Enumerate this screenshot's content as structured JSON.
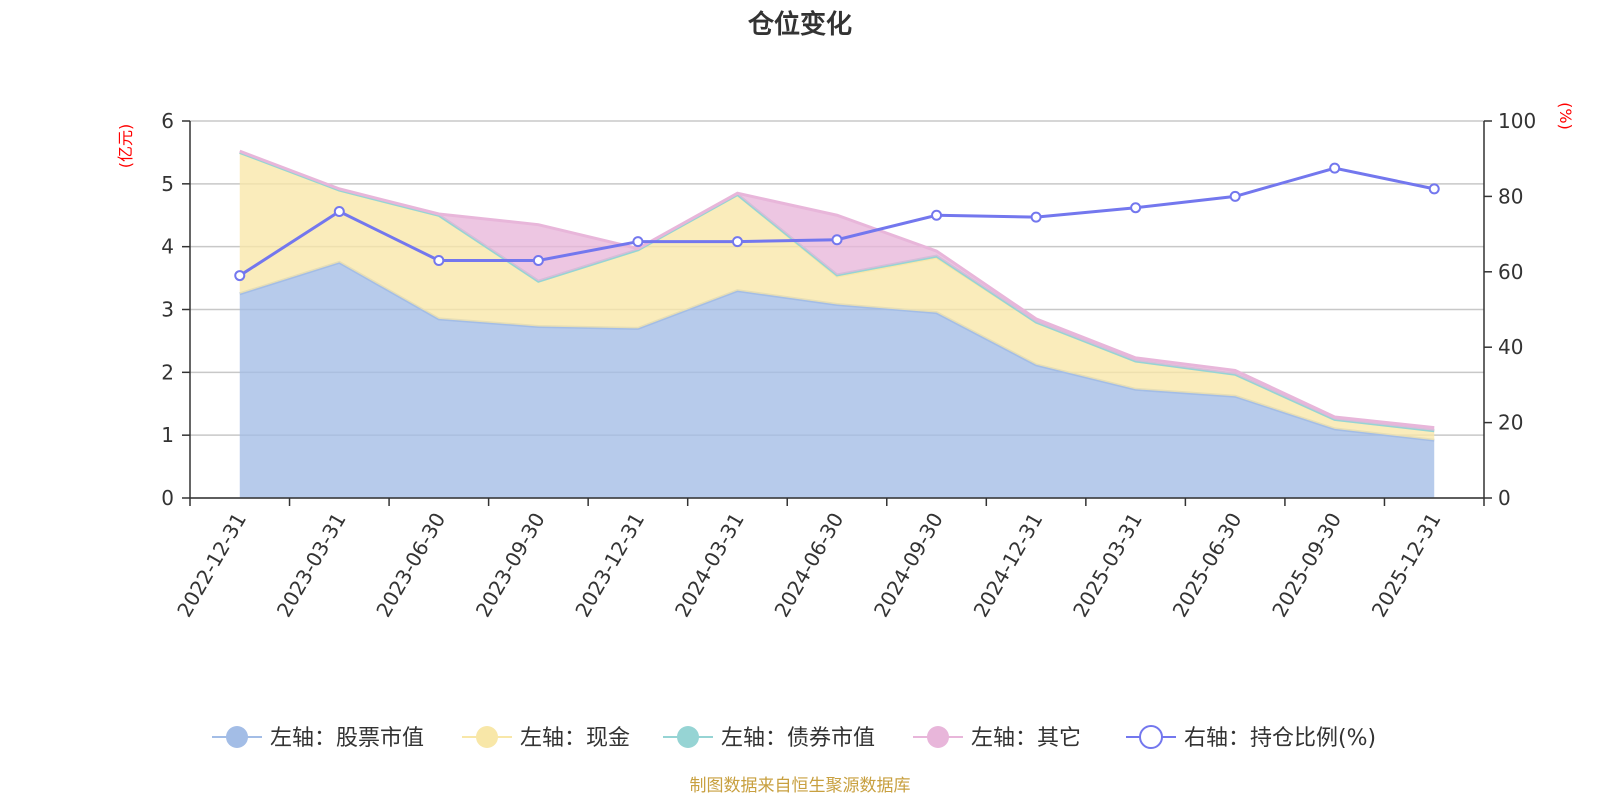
{
  "chart_data": {
    "type": "area",
    "title": "仓位变化",
    "categories": [
      "2022-12-31",
      "2023-03-31",
      "2023-06-30",
      "2023-09-30",
      "2023-12-31",
      "2024-03-31",
      "2024-06-30",
      "2024-09-30",
      "2024-12-31",
      "2025-03-31",
      "2025-06-30",
      "2025-09-30",
      "2025-12-31"
    ],
    "y_left": {
      "label": "(亿元)",
      "min": 0,
      "max": 6,
      "ticks": [
        "0",
        "1",
        "2",
        "3",
        "4",
        "5",
        "6"
      ]
    },
    "y_right": {
      "label": "(%)",
      "min": 0,
      "max": 100,
      "ticks": [
        "0",
        "20",
        "40",
        "60",
        "80",
        "100"
      ]
    },
    "series": [
      {
        "name": "左轴：股票市值",
        "axis": "left",
        "stacked": true,
        "color": "#a3bde6",
        "values": [
          3.25,
          3.75,
          2.85,
          2.73,
          2.7,
          3.3,
          3.08,
          2.95,
          2.12,
          1.73,
          1.62,
          1.1,
          0.92
        ]
      },
      {
        "name": "左轴：现金",
        "axis": "left",
        "stacked": true,
        "color": "#f8e7a8",
        "values": [
          2.25,
          1.15,
          1.65,
          0.72,
          1.25,
          1.53,
          0.45,
          0.88,
          0.68,
          0.45,
          0.35,
          0.15,
          0.15
        ]
      },
      {
        "name": "左轴：债券市值",
        "axis": "left",
        "stacked": true,
        "color": "#96d4d4",
        "values": [
          0,
          0,
          0,
          0,
          0,
          0,
          0.02,
          0.02,
          0,
          0,
          0,
          0,
          0
        ]
      },
      {
        "name": "左轴：其它",
        "axis": "left",
        "stacked": true,
        "color": "#e8b6da",
        "values": [
          0.02,
          0.02,
          0.02,
          0.9,
          0.02,
          0.02,
          0.95,
          0.08,
          0.05,
          0.05,
          0.06,
          0.04,
          0.05
        ]
      },
      {
        "name": "右轴：持仓比例(%)",
        "axis": "right",
        "type": "line",
        "color": "#7377ee",
        "values": [
          59,
          76,
          63,
          63,
          68,
          68,
          68.5,
          75,
          74.5,
          77,
          80,
          87.5,
          82
        ]
      }
    ],
    "legend_position": "bottom"
  },
  "footer": {
    "source": "制图数据来自恒生聚源数据库"
  }
}
